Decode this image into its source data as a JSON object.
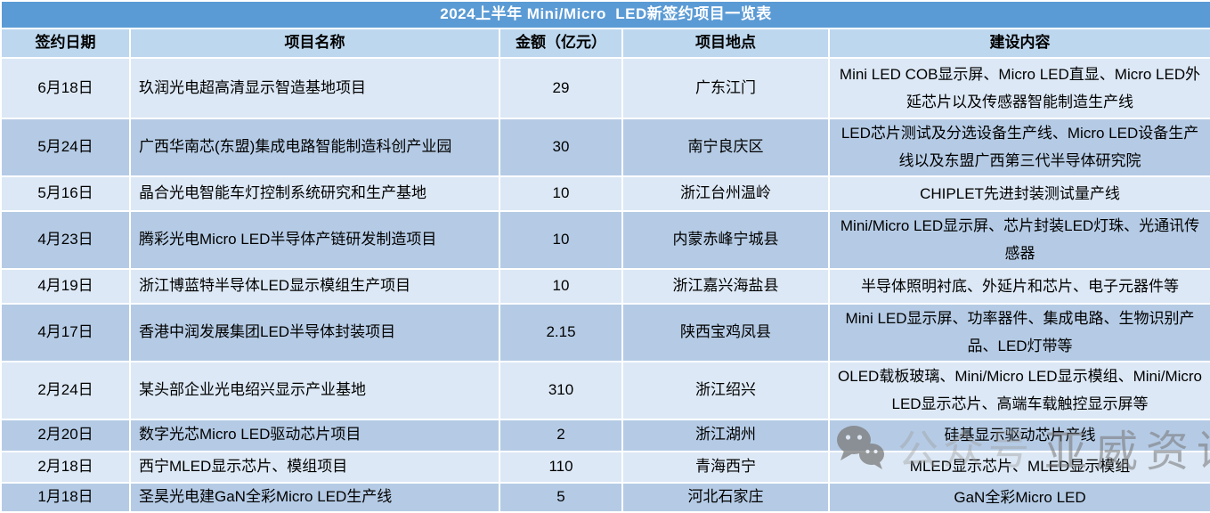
{
  "title": "2024上半年 Mini/Micro  LED新签约项目一览表",
  "table": {
    "columns": [
      "签约日期",
      "项目名称",
      "金额（亿元）",
      "项目地点",
      "建设内容"
    ],
    "rows": [
      {
        "date": "6月18日",
        "name": "玖润光电超高清显示智造基地项目",
        "amount": "29",
        "location": "广东江门",
        "content": "Mini LED COB显示屏、Micro LED直显、Micro LED外延芯片以及传感器智能制造生产线"
      },
      {
        "date": "5月24日",
        "name": "广西华南芯(东盟)集成电路智能制造科创产业园",
        "amount": "30",
        "location": "南宁良庆区",
        "content": "LED芯片测试及分选设备生产线、Micro LED设备生产线以及东盟广西第三代半导体研究院"
      },
      {
        "date": "5月16日",
        "name": "晶合光电智能车灯控制系统研究和生产基地",
        "amount": "10",
        "location": "浙江台州温岭",
        "content": "CHIPLET先进封装测试量产线"
      },
      {
        "date": "4月23日",
        "name": "腾彩光电Micro LED半导体产链研发制造项目",
        "amount": "10",
        "location": "内蒙赤峰宁城县",
        "content": "Mini/Micro LED显示屏、芯片封装LED灯珠、光通讯传感器"
      },
      {
        "date": "4月19日",
        "name": "浙江博蓝特半导体LED显示模组生产项目",
        "amount": "10",
        "location": "浙江嘉兴海盐县",
        "content": "半导体照明衬底、外延片和芯片、电子元器件等"
      },
      {
        "date": "4月17日",
        "name": "香港中润发展集团LED半导体封装项目",
        "amount": "2.15",
        "location": "陕西宝鸡凤县",
        "content": "Mini LED显示屏、功率器件、集成电路、生物识别产品、LED灯带等"
      },
      {
        "date": "2月24日",
        "name": "某头部企业光电绍兴显示产业基地",
        "amount": "310",
        "location": "浙江绍兴",
        "content": "OLED载板玻璃、Mini/Micro LED显示模组、Mini/Micro LED显示芯片、高端车载触控显示屏等"
      },
      {
        "date": "2月20日",
        "name": "数字光芯Micro LED驱动芯片项目",
        "amount": "2",
        "location": "浙江湖州",
        "content": "硅基显示驱动芯片产线"
      },
      {
        "date": "2月18日",
        "name": "西宁MLED显示芯片、模组项目",
        "amount": "110",
        "location": "青海西宁",
        "content": "MLED显示芯片、MLED显示模组"
      },
      {
        "date": "1月18日",
        "name": "圣昊光电建GaN全彩Micro LED生产线",
        "amount": "5",
        "location": "河北石家庄",
        "content": "GaN全彩Micro LED"
      }
    ]
  },
  "watermark": {
    "icon": "wechat-icon",
    "label": "公众号",
    "brand": "亚威资讯"
  },
  "colors": {
    "title_bar": "#5b9bd5",
    "title_text": "#ffffff",
    "header_bg": "#bdd7ee",
    "row_light": "#dce8f5",
    "row_dark": "#b5cbe5",
    "grid": "#ffffff",
    "body_text": "#000000"
  }
}
